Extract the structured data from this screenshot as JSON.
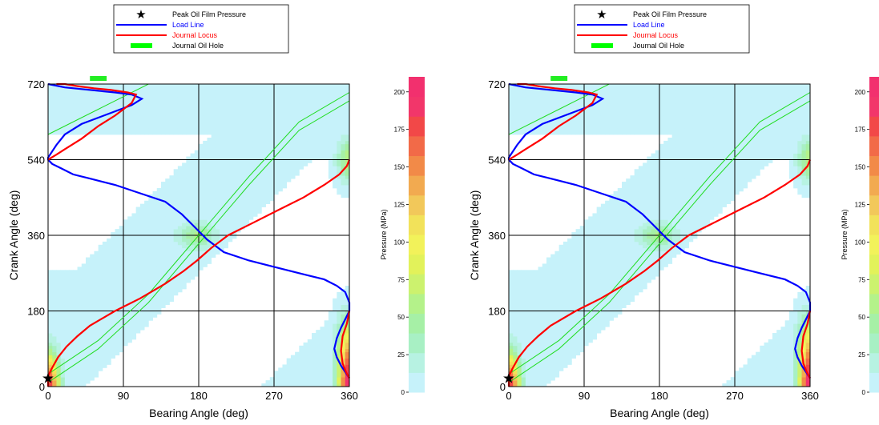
{
  "chart_data": [
    {
      "type": "heatmap",
      "xlabel": "Bearing Angle (deg)",
      "ylabel": "Crank Angle (deg)",
      "xlim": [
        0,
        360
      ],
      "ylim": [
        0,
        720
      ],
      "x_ticks": [
        "0",
        "90",
        "180",
        "270",
        "360"
      ],
      "y_ticks": [
        "0",
        "180",
        "360",
        "540",
        "720"
      ],
      "grid": true,
      "legend": {
        "placement": "top",
        "entries": [
          {
            "label": "Peak Oil Film Pressure",
            "color": "#000000",
            "marker": "star"
          },
          {
            "label": "Load Line",
            "color": "#0000ff",
            "marker": "line"
          },
          {
            "label": "Journal Locus",
            "color": "#ff0000",
            "marker": "line"
          },
          {
            "label": "Journal Oil Hole",
            "color": "#00ff00",
            "marker": "rect"
          }
        ]
      },
      "colorbar": {
        "label": "Pressure (MPa)",
        "range": [
          0,
          210
        ],
        "ticks": [
          "0",
          "25",
          "50",
          "75",
          "100",
          "125",
          "150",
          "175",
          "200"
        ],
        "colors": [
          "#c6f2fa",
          "#b7f2e2",
          "#a8f0c4",
          "#a6f0a6",
          "#b4f28a",
          "#ccf26e",
          "#e2f25a",
          "#f2f25a",
          "#f2e25a",
          "#f2c85a",
          "#f2aa50",
          "#f28a48",
          "#f26a48",
          "#f24848",
          "#f2366a",
          "#f2306e"
        ]
      },
      "peak_pressure": {
        "x": 0,
        "y": 20
      },
      "oil_hole": {
        "x": [
          50,
          70
        ],
        "y": 740
      },
      "load_line": {
        "x": [
          0,
          20,
          40,
          60,
          80,
          100,
          112,
          100,
          80,
          60,
          40,
          20,
          10,
          0,
          0,
          5,
          15,
          30,
          50,
          80,
          110,
          140,
          160,
          175,
          190,
          210,
          240,
          270,
          300,
          330,
          345,
          355,
          360,
          360,
          355,
          350,
          345,
          342,
          345,
          350,
          355,
          360
        ],
        "y": [
          720,
          712,
          708,
          704,
          700,
          695,
          685,
          670,
          655,
          640,
          625,
          600,
          575,
          545,
          540,
          530,
          520,
          505,
          495,
          480,
          460,
          440,
          410,
          380,
          350,
          320,
          300,
          285,
          270,
          255,
          240,
          225,
          200,
          180,
          160,
          140,
          115,
          90,
          70,
          50,
          35,
          20
        ]
      },
      "journal_locus": {
        "x": [
          0,
          10,
          20,
          40,
          60,
          80,
          100,
          105,
          95,
          75,
          55,
          35,
          20,
          10,
          0,
          0,
          5,
          12,
          22,
          35,
          50,
          80,
          110,
          140,
          162,
          178,
          195,
          215,
          245,
          275,
          305,
          330,
          348,
          357,
          360,
          360,
          357,
          352,
          350,
          352,
          356,
          360
        ],
        "y": [
          540,
          552,
          565,
          590,
          620,
          645,
          675,
          695,
          700,
          706,
          710,
          715,
          720,
          720,
          0,
          25,
          45,
          70,
          95,
          120,
          145,
          180,
          210,
          245,
          275,
          300,
          330,
          360,
          390,
          420,
          450,
          480,
          505,
          525,
          540,
          180,
          150,
          120,
          85,
          55,
          35,
          20
        ]
      },
      "green_lines": [
        {
          "x": [
            0,
            60,
            120,
            180,
            240,
            300,
            360
          ],
          "y": [
            30,
            110,
            220,
            360,
            500,
            630,
            700
          ]
        },
        {
          "x": [
            0,
            60,
            120,
            180,
            240,
            300,
            360
          ],
          "y": [
            10,
            90,
            200,
            340,
            480,
            610,
            680
          ]
        },
        {
          "x": [
            0,
            60,
            120,
            180,
            240,
            300,
            360
          ],
          "y": [
            600,
            660,
            720,
            720,
            720,
            720,
            720
          ]
        }
      ]
    },
    {
      "type": "heatmap",
      "xlabel": "Bearing Angle (deg)",
      "ylabel": "Crank Angle (deg)",
      "xlim": [
        0,
        360
      ],
      "ylim": [
        0,
        720
      ],
      "x_ticks": [
        "0",
        "90",
        "180",
        "270",
        "360"
      ],
      "y_ticks": [
        "0",
        "180",
        "360",
        "540",
        "720"
      ],
      "grid": true,
      "legend": {
        "placement": "top",
        "entries": [
          {
            "label": "Peak Oil Film Pressure",
            "color": "#000000",
            "marker": "star"
          },
          {
            "label": "Load Line",
            "color": "#0000ff",
            "marker": "line"
          },
          {
            "label": "Journal Locus",
            "color": "#ff0000",
            "marker": "line"
          },
          {
            "label": "Journal Oil Hole",
            "color": "#00ff00",
            "marker": "rect"
          }
        ]
      },
      "colorbar": {
        "label": "Pressure (MPa)",
        "range": [
          0,
          210
        ],
        "ticks": [
          "0",
          "25",
          "50",
          "75",
          "100",
          "125",
          "150",
          "175",
          "200"
        ],
        "colors": [
          "#c6f2fa",
          "#b7f2e2",
          "#a8f0c4",
          "#a6f0a6",
          "#b4f28a",
          "#ccf26e",
          "#e2f25a",
          "#f2f25a",
          "#f2e25a",
          "#f2c85a",
          "#f2aa50",
          "#f28a48",
          "#f26a48",
          "#f24848",
          "#f2366a",
          "#f2306e"
        ]
      },
      "peak_pressure": {
        "x": 0,
        "y": 20
      },
      "oil_hole": {
        "x": [
          50,
          70
        ],
        "y": 740
      },
      "load_line": {
        "x": [
          0,
          20,
          40,
          60,
          80,
          100,
          112,
          100,
          80,
          60,
          40,
          20,
          10,
          0,
          0,
          5,
          15,
          30,
          50,
          80,
          110,
          140,
          160,
          175,
          190,
          210,
          240,
          270,
          300,
          330,
          345,
          355,
          360,
          360,
          355,
          350,
          345,
          342,
          345,
          350,
          355,
          360
        ],
        "y": [
          720,
          712,
          708,
          704,
          700,
          695,
          685,
          670,
          655,
          640,
          625,
          600,
          575,
          545,
          540,
          530,
          520,
          505,
          495,
          480,
          460,
          440,
          410,
          380,
          350,
          320,
          300,
          285,
          270,
          255,
          240,
          225,
          200,
          180,
          160,
          140,
          115,
          90,
          70,
          50,
          35,
          20
        ]
      },
      "journal_locus": {
        "x": [
          0,
          10,
          20,
          40,
          60,
          80,
          100,
          105,
          95,
          75,
          55,
          35,
          20,
          10,
          0,
          0,
          5,
          12,
          22,
          35,
          50,
          80,
          110,
          140,
          162,
          178,
          195,
          215,
          245,
          275,
          305,
          330,
          348,
          357,
          360,
          360,
          357,
          352,
          350,
          352,
          356,
          360
        ],
        "y": [
          540,
          552,
          565,
          590,
          620,
          645,
          675,
          695,
          700,
          706,
          710,
          715,
          720,
          720,
          0,
          25,
          45,
          70,
          95,
          120,
          145,
          180,
          210,
          245,
          275,
          300,
          330,
          360,
          390,
          420,
          450,
          480,
          505,
          525,
          540,
          180,
          150,
          120,
          85,
          55,
          35,
          20
        ]
      },
      "green_lines": [
        {
          "x": [
            0,
            60,
            120,
            180,
            240,
            300,
            360
          ],
          "y": [
            30,
            110,
            220,
            360,
            500,
            630,
            700
          ]
        },
        {
          "x": [
            0,
            60,
            120,
            180,
            240,
            300,
            360
          ],
          "y": [
            10,
            90,
            200,
            340,
            480,
            610,
            680
          ]
        },
        {
          "x": [
            0,
            60,
            120,
            180,
            240,
            300,
            360
          ],
          "y": [
            600,
            660,
            720,
            720,
            720,
            720,
            720
          ]
        }
      ]
    }
  ]
}
